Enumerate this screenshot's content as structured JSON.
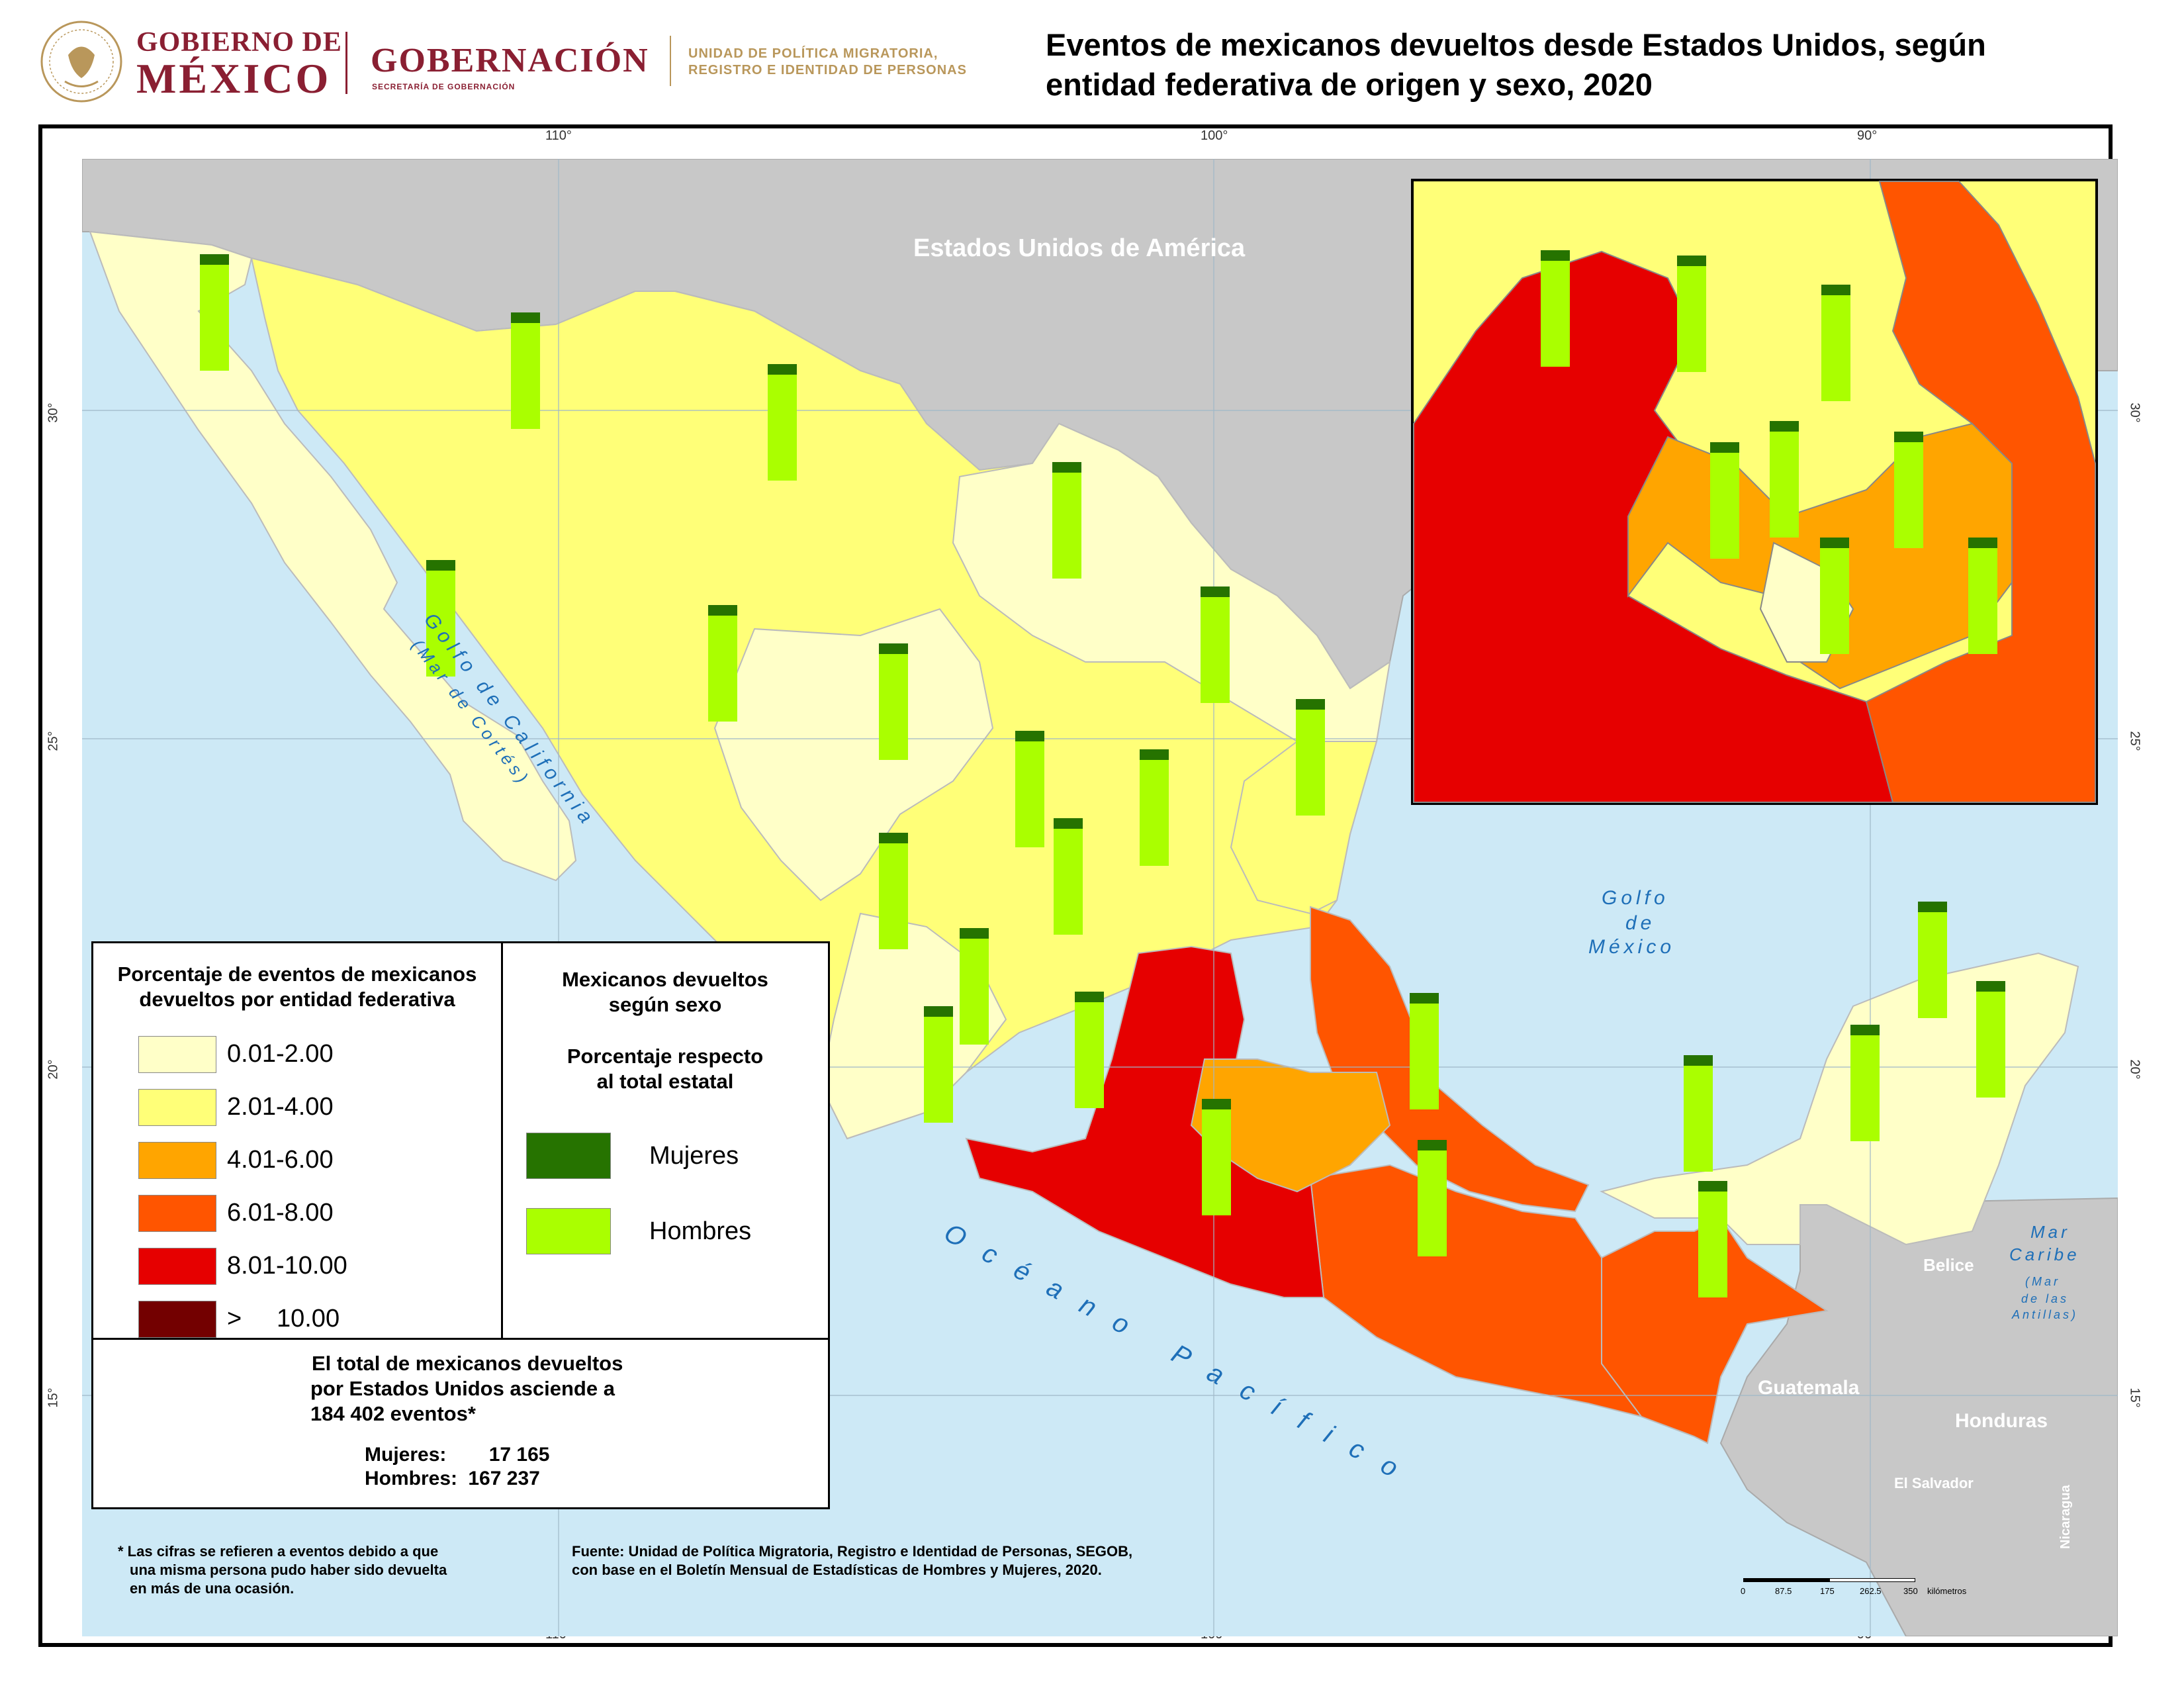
{
  "header": {
    "logo_gobierno_line1": "GOBIERNO DE",
    "logo_gobierno_line2": "MÉXICO",
    "logo_gobernacion": "GOBERNACIÓN",
    "logo_gobernacion_sub": "SECRETARÍA DE GOBERNACIÓN",
    "logo_unidad_line1": "UNIDAD DE POLÍTICA MIGRATORIA,",
    "logo_unidad_line2": "REGISTRO E IDENTIDAD DE PERSONAS",
    "title_line1": "Eventos de mexicanos devueltos desde Estados Unidos, según",
    "title_line2": "entidad federativa de origen y sexo, 2020"
  },
  "graticule": {
    "lon_labels": [
      "110°",
      "100°",
      "90°"
    ],
    "lat_labels": [
      "30°",
      "25°",
      "20°",
      "15°"
    ]
  },
  "map_labels": {
    "usa": "Estados Unidos de América",
    "golfo_california_1": "Golfo de California",
    "golfo_california_2": "(Mar de Cortés)",
    "golfo_mexico_1": "Golfo",
    "golfo_mexico_2": "de",
    "golfo_mexico_3": "México",
    "oceano": "Océano Pacífico",
    "mar_caribe_1": "Mar",
    "mar_caribe_2": "Caribe",
    "mar_caribe_3": "(Mar",
    "mar_caribe_4": "de las",
    "mar_caribe_5": "Antillas)",
    "belice": "Belice",
    "guatemala": "Guatemala",
    "honduras": "Honduras",
    "el_salvador": "El Salvador",
    "nicaragua": "Nicaragua"
  },
  "legend": {
    "title_line1": "Porcentaje de eventos de mexicanos",
    "title_line2": "devueltos por entidad federativa",
    "classes": [
      {
        "label": "0.01-2.00",
        "color": "#ffffc8"
      },
      {
        "label": "2.01-4.00",
        "color": "#ffff78"
      },
      {
        "label": "4.01-6.00",
        "color": "#ffa500"
      },
      {
        "label": "6.01-8.00",
        "color": "#ff5500"
      },
      {
        "label": "8.01-10.00",
        "color": "#e60000"
      },
      {
        "label": ">     10.00",
        "color": "#730000"
      }
    ],
    "sex_title_1": "Mexicanos devueltos",
    "sex_title_2": "según sexo",
    "sex_sub_1": "Porcentaje respecto",
    "sex_sub_2": "al total estatal",
    "mujeres_label": "Mujeres",
    "mujeres_color": "#267300",
    "hombres_label": "Hombres",
    "hombres_color": "#aaff00",
    "total_line1": "El total de mexicanos devueltos",
    "total_line2": "por Estados Unidos asciende a",
    "total_line3": "184 402 eventos*",
    "mujeres_total_label": "Mujeres:",
    "mujeres_total": "17 165",
    "hombres_total_label": "Hombres:",
    "hombres_total": "167 237"
  },
  "footnote": {
    "line1": "* Las cifras se refieren a eventos debido a que",
    "line2": "una misma persona pudo haber sido devuelta",
    "line3": "en más de una ocasión."
  },
  "source": {
    "line1": "Fuente: Unidad de Política Migratoria, Registro e Identidad de Personas, SEGOB,",
    "line2": "con base en el Boletín Mensual de Estadísticas de Hombres y Mujeres, 2020."
  },
  "scale_bar": {
    "ticks": [
      "0",
      "87.5",
      "175",
      "262.5",
      "350"
    ],
    "unit": "kilómetros"
  },
  "colors": {
    "sea": "#cde9f6",
    "land_foreign": "#c8c8c8",
    "c1": "#ffffc8",
    "c2": "#ffff78",
    "c3": "#ffa500",
    "c4": "#ff5500",
    "c5": "#e60000"
  }
}
